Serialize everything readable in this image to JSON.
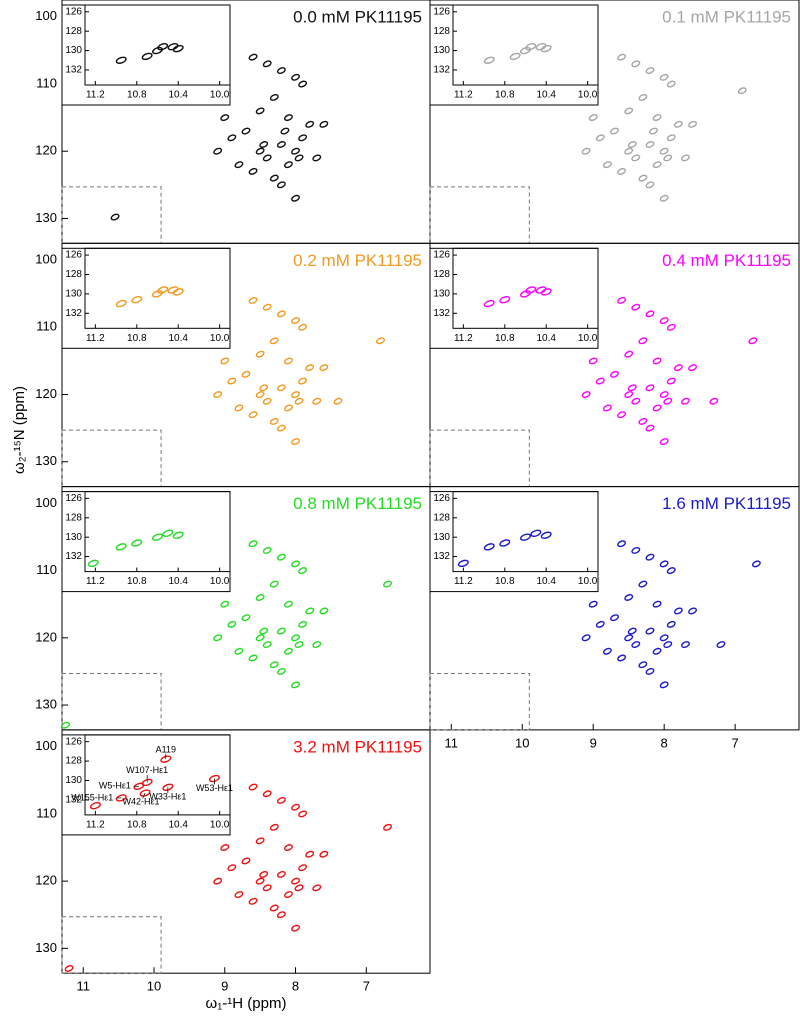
{
  "figure": {
    "xlabel": "ω₁-¹H (ppm)",
    "ylabel": "ω₂-¹⁵N (ppm)"
  },
  "chart_data": [
    {
      "type": "scatter",
      "title": "0.0 mM PK11195",
      "color": "#111111",
      "x": [
        8.6,
        8.4,
        8.2,
        8.0,
        7.9,
        8.3,
        8.5,
        8.1,
        7.8,
        8.7,
        8.9,
        8.2,
        8.0,
        7.7,
        8.4,
        8.8,
        9.1,
        8.6,
        8.1,
        7.9,
        8.3,
        7.6,
        8.5,
        9.0,
        8.2,
        8.0,
        7.95,
        8.45,
        8.15,
        10.55
      ],
      "y": [
        106,
        107,
        108,
        109,
        110,
        112,
        114,
        115,
        116,
        117,
        118,
        119,
        120,
        121,
        121,
        122,
        120,
        123,
        122,
        118,
        124,
        116,
        120,
        115,
        125,
        127,
        121,
        119,
        117,
        129.8
      ],
      "xlim": [
        11.3,
        6.1
      ],
      "ylim": [
        97.5,
        133.7
      ],
      "yticks": [
        100,
        110,
        120,
        130
      ],
      "inset": {
        "x": [
          10.95,
          10.7,
          10.6,
          10.55,
          10.45,
          10.4
        ],
        "y": [
          131,
          130.6,
          130,
          129.6,
          129.6,
          129.8
        ],
        "xlim": [
          11.3,
          9.9
        ],
        "ylim": [
          125.3,
          133.55
        ],
        "xticks": [
          11.2,
          10.8,
          10.4,
          {
            "value": 10,
            "label": "10.0"
          }
        ],
        "yticks": [
          126,
          128,
          130,
          132
        ]
      }
    },
    {
      "type": "scatter",
      "title": "0.1 mM PK11195",
      "color": "#a6a6a6",
      "x": [
        8.6,
        8.4,
        8.2,
        8.0,
        7.9,
        8.3,
        8.5,
        8.1,
        7.8,
        8.7,
        8.9,
        8.2,
        8.0,
        7.7,
        8.4,
        8.8,
        9.1,
        8.6,
        8.1,
        7.9,
        8.3,
        7.6,
        8.5,
        9.0,
        8.2,
        8.0,
        7.95,
        8.45,
        8.15,
        6.9
      ],
      "y": [
        106,
        107,
        108,
        109,
        110,
        112,
        114,
        115,
        116,
        117,
        118,
        119,
        120,
        121,
        121,
        122,
        120,
        123,
        122,
        118,
        124,
        116,
        120,
        115,
        125,
        127,
        121,
        119,
        117,
        111
      ],
      "xlim": [
        11.3,
        6.1
      ],
      "ylim": [
        97.5,
        133.7
      ],
      "inset": {
        "x": [
          10.95,
          10.7,
          10.6,
          10.55,
          10.45,
          10.4
        ],
        "y": [
          131,
          130.6,
          130,
          129.6,
          129.6,
          129.8
        ],
        "xlim": [
          11.3,
          9.9
        ],
        "ylim": [
          125.3,
          133.55
        ],
        "xticks": [
          11.2,
          10.8,
          10.4,
          {
            "value": 10,
            "label": "10.0"
          }
        ],
        "yticks": [
          126,
          128,
          130,
          132
        ]
      }
    },
    {
      "type": "scatter",
      "title": "0.2 mM PK11195",
      "color": "#f39a1e",
      "x": [
        8.6,
        8.4,
        8.2,
        8.0,
        7.9,
        8.3,
        8.5,
        8.1,
        7.8,
        8.7,
        8.9,
        8.2,
        8.0,
        7.7,
        8.4,
        8.8,
        9.1,
        8.6,
        8.1,
        7.9,
        8.3,
        7.6,
        8.5,
        9.0,
        8.2,
        8.0,
        7.95,
        8.45,
        6.8,
        7.4
      ],
      "y": [
        106,
        107,
        108,
        109,
        110,
        112,
        114,
        115,
        116,
        117,
        118,
        119,
        120,
        121,
        121,
        122,
        120,
        123,
        122,
        118,
        124,
        116,
        120,
        115,
        125,
        127,
        121,
        119,
        112,
        121
      ],
      "xlim": [
        11.3,
        6.1
      ],
      "ylim": [
        97.5,
        133.7
      ],
      "yticks": [
        100,
        110,
        120,
        130
      ],
      "inset": {
        "x": [
          10.95,
          10.8,
          10.6,
          10.55,
          10.45,
          10.4
        ],
        "y": [
          131,
          130.6,
          130,
          129.6,
          129.6,
          129.8
        ],
        "xlim": [
          11.3,
          9.9
        ],
        "ylim": [
          125.3,
          133.55
        ],
        "xticks": [
          11.2,
          10.8,
          10.4,
          {
            "value": 10,
            "label": "10.0"
          }
        ],
        "yticks": [
          126,
          128,
          130,
          132
        ]
      }
    },
    {
      "type": "scatter",
      "title": "0.4 mM PK11195",
      "color": "#ff00ff",
      "x": [
        8.6,
        8.4,
        8.2,
        8.0,
        7.9,
        8.3,
        8.5,
        8.1,
        7.8,
        8.7,
        8.9,
        8.2,
        8.0,
        7.7,
        8.4,
        8.8,
        9.1,
        8.6,
        8.1,
        7.9,
        8.3,
        7.6,
        8.5,
        9.0,
        8.2,
        8.0,
        7.95,
        8.45,
        6.75,
        7.3
      ],
      "y": [
        106,
        107,
        108,
        109,
        110,
        112,
        114,
        115,
        116,
        117,
        118,
        119,
        120,
        121,
        121,
        122,
        120,
        123,
        122,
        118,
        124,
        116,
        120,
        115,
        125,
        127,
        121,
        119,
        112,
        121
      ],
      "xlim": [
        11.3,
        6.1
      ],
      "ylim": [
        97.5,
        133.7
      ],
      "inset": {
        "x": [
          10.95,
          10.8,
          10.6,
          10.55,
          10.45,
          10.4
        ],
        "y": [
          131,
          130.6,
          130,
          129.6,
          129.6,
          129.8
        ],
        "xlim": [
          11.3,
          9.9
        ],
        "ylim": [
          125.3,
          133.55
        ],
        "xticks": [
          11.2,
          10.8,
          10.4,
          {
            "value": 10,
            "label": "10.0"
          }
        ],
        "yticks": [
          126,
          128,
          130,
          132
        ]
      }
    },
    {
      "type": "scatter",
      "title": "0.8 mM PK11195",
      "color": "#22dd22",
      "x": [
        8.6,
        8.4,
        8.2,
        8.0,
        7.9,
        8.3,
        8.5,
        8.1,
        7.8,
        8.7,
        8.9,
        8.2,
        8.0,
        7.7,
        8.4,
        8.8,
        9.1,
        8.6,
        8.1,
        7.9,
        8.3,
        7.6,
        8.5,
        9.0,
        8.2,
        8.0,
        7.95,
        8.45,
        6.7,
        11.25
      ],
      "y": [
        106,
        107,
        108,
        109,
        110,
        112,
        114,
        115,
        116,
        117,
        118,
        119,
        120,
        121,
        121,
        122,
        120,
        123,
        122,
        118,
        124,
        116,
        120,
        115,
        125,
        127,
        121,
        119,
        112,
        133
      ],
      "xlim": [
        11.3,
        6.1
      ],
      "ylim": [
        97.5,
        133.7
      ],
      "yticks": [
        100,
        110,
        120,
        130
      ],
      "inset": {
        "x": [
          11.22,
          10.95,
          10.8,
          10.6,
          10.5,
          10.4
        ],
        "y": [
          132.7,
          131,
          130.6,
          130,
          129.6,
          129.8
        ],
        "xlim": [
          11.3,
          9.9
        ],
        "ylim": [
          125.3,
          133.55
        ],
        "xticks": [
          11.2,
          10.8,
          10.4,
          {
            "value": 10,
            "label": "10.0"
          }
        ],
        "yticks": [
          126,
          128,
          130,
          132
        ]
      }
    },
    {
      "type": "scatter",
      "title": "1.6 mM PK11195",
      "color": "#1a1acc",
      "x": [
        8.6,
        8.4,
        8.2,
        8.0,
        7.9,
        8.3,
        8.5,
        8.1,
        7.8,
        8.7,
        8.9,
        8.2,
        8.0,
        7.7,
        8.4,
        8.8,
        9.1,
        8.6,
        8.1,
        7.9,
        8.3,
        7.6,
        8.5,
        9.0,
        8.2,
        8.0,
        7.95,
        8.45,
        6.7,
        7.2
      ],
      "y": [
        106,
        107,
        108,
        109,
        110,
        112,
        114,
        115,
        116,
        117,
        118,
        119,
        120,
        121,
        121,
        122,
        120,
        123,
        122,
        118,
        124,
        116,
        120,
        115,
        125,
        127,
        121,
        119,
        109,
        121
      ],
      "xlim": [
        11.3,
        6.1
      ],
      "ylim": [
        97.5,
        133.7
      ],
      "xticks": [
        11,
        10,
        9,
        8,
        7
      ],
      "inset": {
        "x": [
          11.2,
          10.95,
          10.8,
          10.6,
          10.5,
          10.4
        ],
        "y": [
          132.7,
          131,
          130.6,
          130,
          129.6,
          129.8
        ],
        "xlim": [
          11.3,
          9.9
        ],
        "ylim": [
          125.3,
          133.55
        ],
        "xticks": [
          11.2,
          10.8,
          10.4,
          {
            "value": 10,
            "label": "10.0"
          }
        ],
        "yticks": [
          126,
          128,
          130,
          132
        ]
      }
    },
    {
      "type": "scatter",
      "title": "3.2 mM PK11195",
      "color": "#ee1111",
      "x": [
        8.6,
        8.4,
        8.2,
        8.0,
        7.9,
        8.3,
        8.5,
        8.1,
        7.8,
        8.7,
        8.9,
        8.2,
        8.0,
        7.7,
        8.4,
        8.8,
        9.1,
        8.6,
        8.1,
        7.9,
        8.3,
        7.6,
        8.5,
        9.0,
        8.2,
        8.0,
        7.95,
        8.45,
        6.7,
        11.2
      ],
      "y": [
        106,
        107,
        108,
        109,
        110,
        112,
        114,
        115,
        116,
        117,
        118,
        119,
        120,
        121,
        121,
        122,
        120,
        123,
        122,
        118,
        124,
        116,
        120,
        115,
        125,
        127,
        121,
        119,
        112,
        133
      ],
      "xlim": [
        11.3,
        6.1
      ],
      "ylim": [
        97.5,
        133.7
      ],
      "yticks": [
        100,
        110,
        120,
        130
      ],
      "xticks": [
        11,
        10,
        9,
        8,
        7
      ],
      "inset": {
        "x": [
          11.2,
          10.95,
          10.78,
          10.7,
          10.72,
          10.52,
          10.5,
          10.05
        ],
        "y": [
          132.6,
          131.8,
          130.6,
          130.2,
          131.3,
          127.8,
          130.7,
          129.8
        ],
        "xlim": [
          11.3,
          9.9
        ],
        "ylim": [
          125.3,
          133.55
        ],
        "xticks": [
          11.2,
          10.8,
          10.4,
          {
            "value": 10,
            "label": "10.0"
          }
        ],
        "yticks": [
          126,
          128,
          130,
          132
        ],
        "annotations": [
          {
            "text": "A119",
            "x": 10.52,
            "y": 127.8
          },
          {
            "text": "W107-Hε1",
            "x": 10.7,
            "y": 130.2
          },
          {
            "text": "W5-Hε1",
            "x": 10.78,
            "y": 130.6
          },
          {
            "text": "W53-Hε1",
            "x": 10.05,
            "y": 129.8
          },
          {
            "text": "W155-Hε1",
            "x": 10.95,
            "y": 131.8
          },
          {
            "text": "W42-Hε1",
            "x": 10.72,
            "y": 131.3
          },
          {
            "text": "W33-Hε1",
            "x": 10.5,
            "y": 130.7
          }
        ]
      }
    }
  ]
}
